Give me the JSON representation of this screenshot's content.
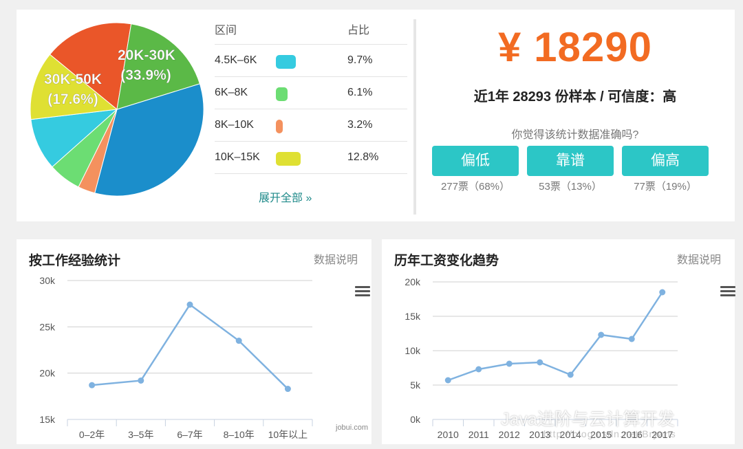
{
  "pie": {
    "slices": [
      {
        "label": "20K-30K",
        "pct_label": "(33.9%)",
        "value": 33.9,
        "color": "#1b8ecb"
      },
      {
        "label": "",
        "pct_label": "",
        "value": 3.2,
        "color": "#f4915e"
      },
      {
        "label": "",
        "pct_label": "",
        "value": 6.1,
        "color": "#6cdd73"
      },
      {
        "label": "",
        "pct_label": "",
        "value": 9.7,
        "color": "#35cbe0"
      },
      {
        "label": "",
        "pct_label": "",
        "value": 12.8,
        "color": "#dfe033"
      },
      {
        "label": "",
        "pct_label": "",
        "value": 16.7,
        "color": "#ea5629"
      },
      {
        "label": "30K-50K",
        "pct_label": "(17.6%)",
        "value": 17.6,
        "color": "#5bb947"
      }
    ]
  },
  "table": {
    "header_range": "区间",
    "header_pct": "占比",
    "rows": [
      {
        "range": "4.5K–6K",
        "pct": "9.7%",
        "color": "#35cbe0"
      },
      {
        "range": "6K–8K",
        "pct": "6.1%",
        "color": "#6cdd73"
      },
      {
        "range": "8K–10K",
        "pct": "3.2%",
        "color": "#f4915e"
      },
      {
        "range": "10K–15K",
        "pct": "12.8%",
        "color": "#dfe033"
      }
    ],
    "expand": "展开全部 »"
  },
  "salary": {
    "amount": "¥ 18290",
    "sample": "近1年 28293 份样本 / 可信度：高",
    "question": "你觉得该统计数据准确吗?",
    "votes": [
      {
        "label": "偏低",
        "count": "277票（68%）"
      },
      {
        "label": "靠谱",
        "count": "53票（13%）"
      },
      {
        "label": "偏高",
        "count": "77票（19%）"
      }
    ]
  },
  "experience_panel": {
    "title": "按工作经验统计",
    "note": "数据说明",
    "site": "jobui.com"
  },
  "trend_panel": {
    "title": "历年工资变化趋势",
    "note": "数据说明"
  },
  "chart_data": [
    {
      "type": "line",
      "categories": [
        "0–2年",
        "3–5年",
        "6–7年",
        "8–10年",
        "10年以上"
      ],
      "values": [
        18700,
        19200,
        27400,
        23500,
        18300
      ],
      "yticks": [
        "15k",
        "20k",
        "25k",
        "30k"
      ],
      "ylim": [
        15000,
        30000
      ],
      "color": "#7fb2e0"
    },
    {
      "type": "line",
      "categories": [
        "2010",
        "2011",
        "2012",
        "2013",
        "2014",
        "2015",
        "2016",
        "2017"
      ],
      "values": [
        5700,
        7300,
        8100,
        8300,
        6500,
        12300,
        11700,
        18500
      ],
      "yticks": [
        "0k",
        "5k",
        "10k",
        "15k",
        "20k"
      ],
      "ylim": [
        0,
        20000
      ],
      "color": "#7fb2e0"
    }
  ],
  "watermark": {
    "text": "Java进阶与云计算开发",
    "url": "http://blog.csdn.net/Bryans"
  }
}
